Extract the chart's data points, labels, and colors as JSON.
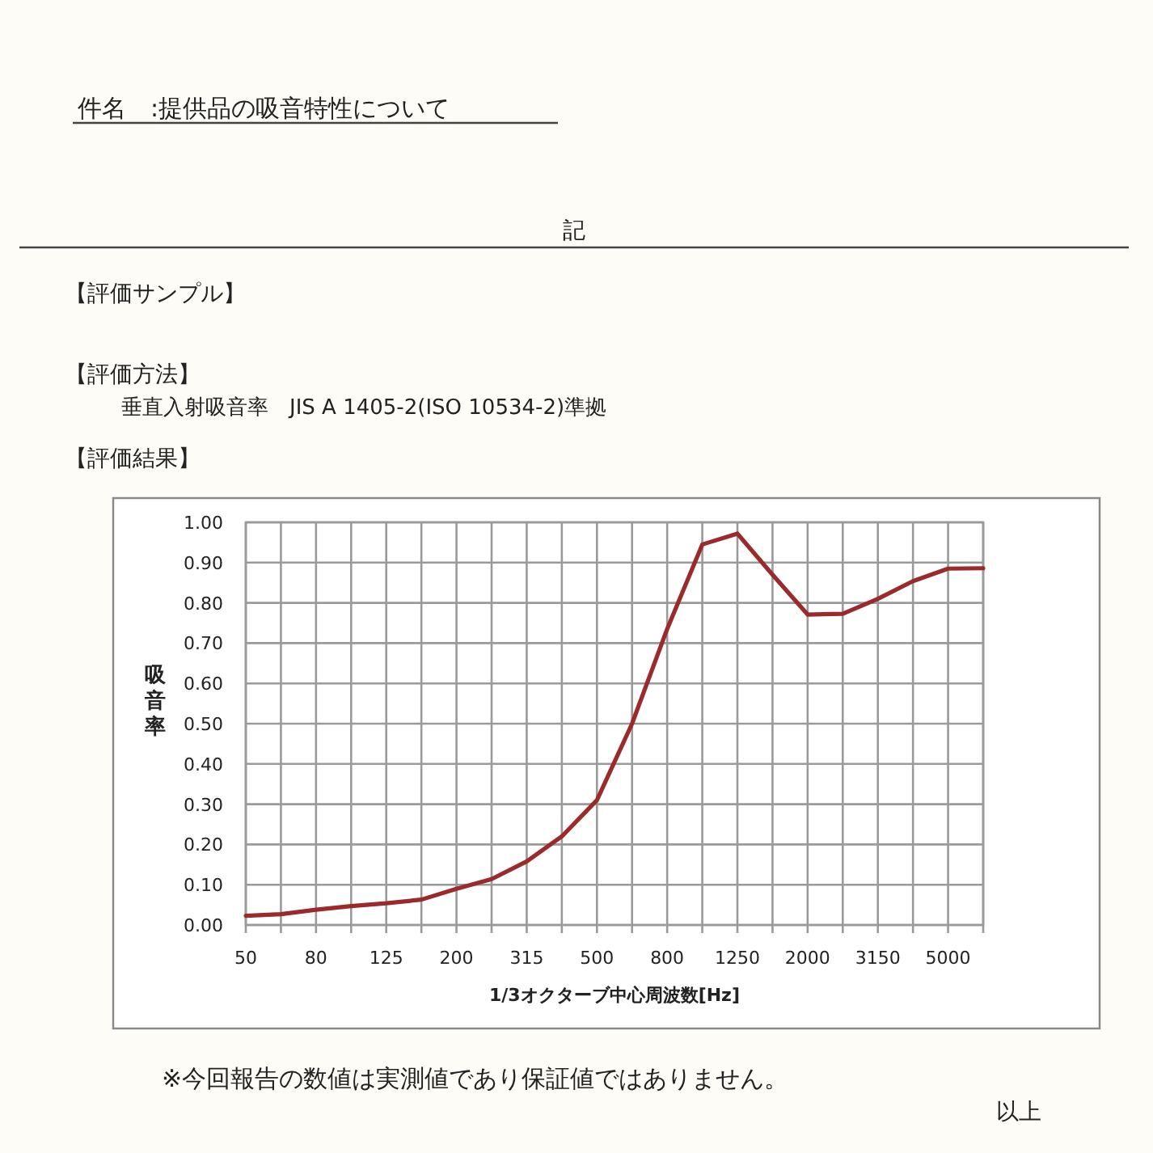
{
  "chart_data": {
    "type": "line",
    "title": "件名　:提供品の吸音特性について",
    "annotations": [
      "記",
      "【評価サンプル】",
      "【評価方法】",
      "垂直入射吸音率　JIS A 1405-2(ISO 10534-2)準拠",
      "【評価結果】",
      "※今回報告の数値は実測値であり保証値ではありません。",
      "以上"
    ],
    "xlabel": "1/3オクターブ中心周波数[Hz]",
    "ylabel": "吸音率",
    "categories": [
      "50",
      null,
      "80",
      null,
      "125",
      null,
      "200",
      null,
      "315",
      null,
      "500",
      null,
      "800",
      null,
      "1250",
      null,
      "2000",
      null,
      "3150",
      null,
      "5000",
      null
    ],
    "series": [
      {
        "color": "#9b2a2a",
        "values": [
          0.023,
          0.027,
          0.038,
          0.047,
          0.054,
          0.063,
          0.09,
          0.114,
          0.158,
          0.22,
          0.31,
          0.5,
          0.735,
          0.945,
          0.972,
          0.87,
          0.771,
          0.773,
          0.81,
          0.854,
          0.885,
          0.886
        ]
      }
    ],
    "ylim": [
      0,
      1
    ],
    "yticks": [
      {
        "value": 0,
        "label": "0.00"
      },
      {
        "value": 0.1,
        "label": "0.10"
      },
      {
        "value": 0.2,
        "label": "0.20"
      },
      {
        "value": 0.3,
        "label": "0.30"
      },
      {
        "value": 0.4,
        "label": "0.40"
      },
      {
        "value": 0.5,
        "label": "0.50"
      },
      {
        "value": 0.6,
        "label": "0.60"
      },
      {
        "value": 0.7,
        "label": "0.70"
      },
      {
        "value": 0.8,
        "label": "0.80"
      },
      {
        "value": 0.9,
        "label": "0.90"
      },
      {
        "value": 1,
        "label": "1.00"
      }
    ],
    "grid": true,
    "marker": "none",
    "line_style": "solid"
  }
}
